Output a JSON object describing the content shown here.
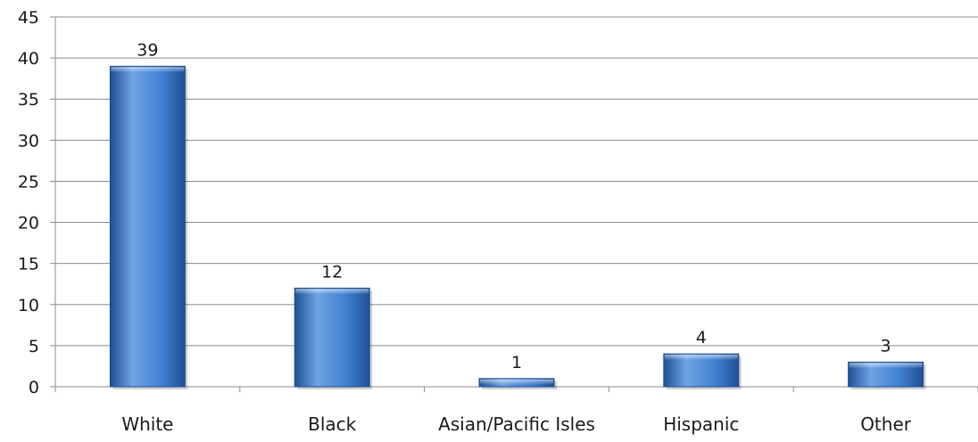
{
  "chart_data": {
    "type": "bar",
    "title": "",
    "xlabel": "",
    "ylabel": "",
    "categories": [
      "White",
      "Black",
      "Asian/Pacific Isles",
      "Hispanic",
      "Other"
    ],
    "series": [
      {
        "values": [
          39,
          12,
          1,
          4,
          3
        ]
      }
    ],
    "data_labels": [
      "39",
      "12",
      "1",
      "4",
      "3"
    ],
    "ylim": [
      0,
      45
    ],
    "y_ticks": [
      0,
      5,
      10,
      15,
      20,
      25,
      30,
      35,
      40,
      45
    ],
    "y_tick_labels": [
      "0",
      "5",
      "10",
      "15",
      "20",
      "25",
      "30",
      "35",
      "40",
      "45"
    ],
    "grid": true,
    "legend": "none",
    "colors": {
      "bar": "#3f7fd0",
      "bar_dark": "#1f4f93",
      "bar_light": "#6fa3e6",
      "grid": "#8c8c8c",
      "axis": "#8c8c8c"
    }
  }
}
